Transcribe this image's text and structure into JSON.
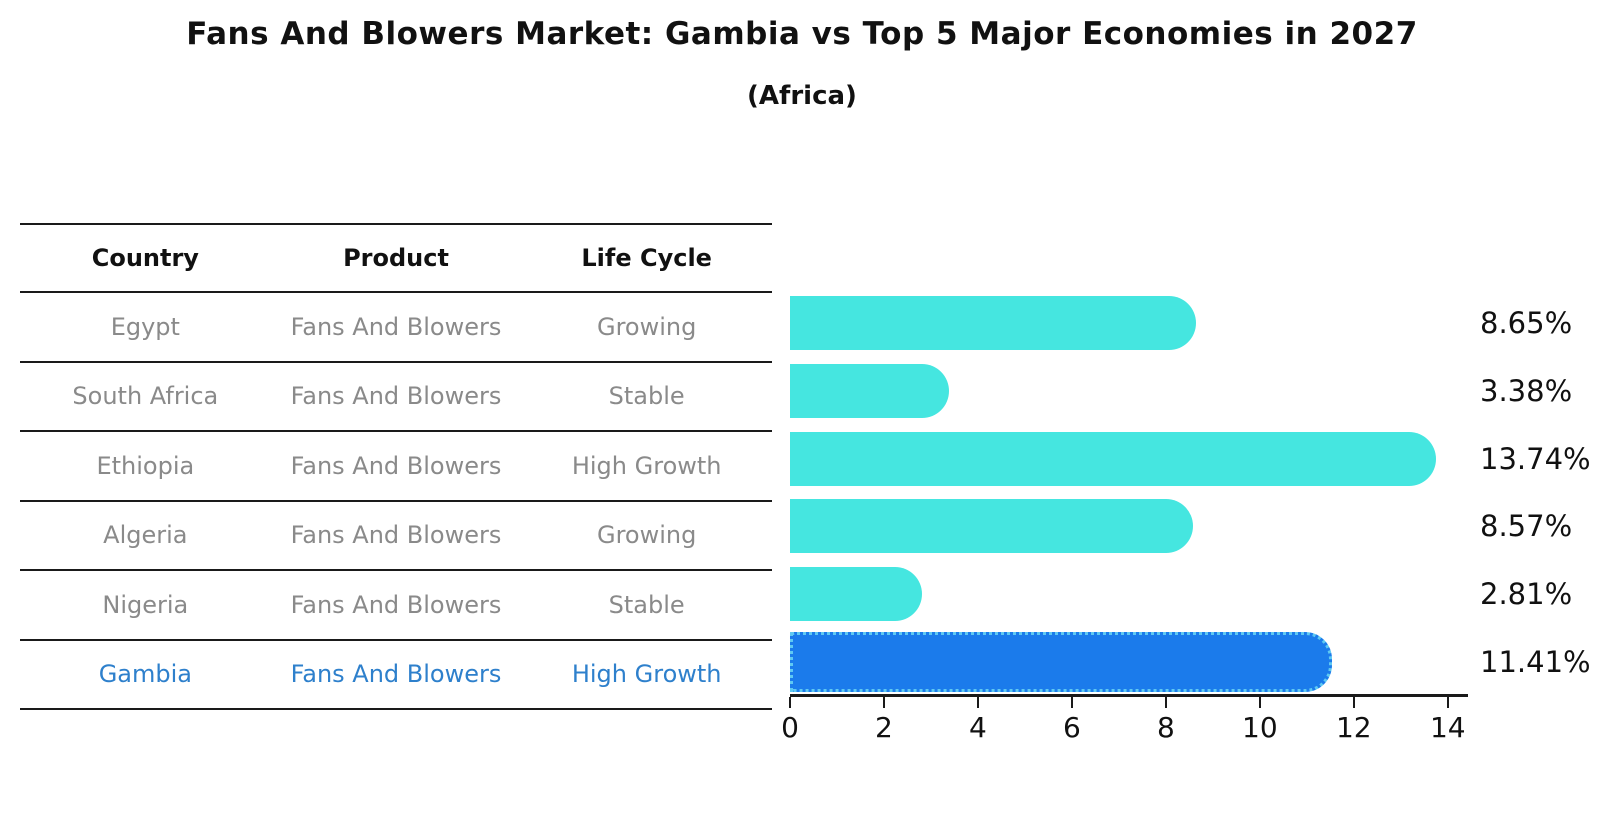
{
  "title": "Fans And Blowers Market: Gambia vs Top 5 Major Economies in 2027",
  "subtitle": "(Africa)",
  "table": {
    "headers": [
      "Country",
      "Product",
      "Life Cycle"
    ],
    "rows": [
      {
        "country": "Egypt",
        "product": "Fans And Blowers",
        "life_cycle": "Growing",
        "value_label": "8.65%"
      },
      {
        "country": "South Africa",
        "product": "Fans And Blowers",
        "life_cycle": "Stable",
        "value_label": "3.38%"
      },
      {
        "country": "Ethiopia",
        "product": "Fans And Blowers",
        "life_cycle": "High Growth",
        "value_label": "13.74%"
      },
      {
        "country": "Algeria",
        "product": "Fans And Blowers",
        "life_cycle": "Growing",
        "value_label": "8.57%"
      },
      {
        "country": "Nigeria",
        "product": "Fans And Blowers",
        "life_cycle": "Stable",
        "value_label": "2.81%"
      },
      {
        "country": "Gambia",
        "product": "Fans And Blowers",
        "life_cycle": "High Growth",
        "value_label": "11.41%"
      }
    ]
  },
  "chart_data": {
    "type": "bar",
    "orientation": "horizontal",
    "title": "Fans And Blowers Market: Gambia vs Top 5 Major Economies in 2027 (Africa)",
    "categories": [
      "Egypt",
      "South Africa",
      "Ethiopia",
      "Algeria",
      "Nigeria",
      "Gambia"
    ],
    "values": [
      8.65,
      3.38,
      13.74,
      8.57,
      2.81,
      11.41
    ],
    "value_labels": [
      "8.65%",
      "3.38%",
      "13.74%",
      "8.57%",
      "2.81%",
      "11.41%"
    ],
    "xlabel": "",
    "ylabel": "",
    "xlim": [
      0,
      14.43
    ],
    "xticks": [
      0,
      2,
      4,
      6,
      8,
      10,
      12,
      14
    ],
    "grid": false,
    "legend": false,
    "highlight_index": 5,
    "highlight_category": "Gambia"
  },
  "colors": {
    "bar": "#45E6E0",
    "highlight_bar": "#1B7BEB",
    "highlight_border": "#5FC9F2",
    "highlight_text": "#2E80CC",
    "table_text": "#8a8a8a",
    "header_text": "#111111",
    "axis": "#1a1a1a"
  }
}
